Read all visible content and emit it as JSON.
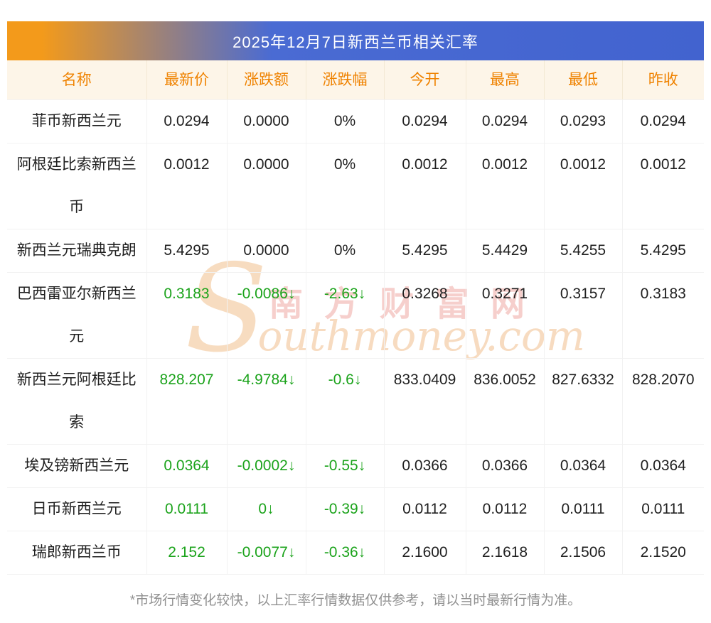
{
  "page": {
    "title": "2025年12月7日新西兰币相关汇率",
    "footnote": "*市场行情变化较快，以上汇率行情数据仅供参考，请以当时最新行情为准。"
  },
  "watermark": {
    "initial": "S",
    "brand_en": "outhmoney.com",
    "brand_cn": "南方财富网"
  },
  "colors": {
    "title_gradient_start": "#f39a1b",
    "title_gradient_end": "#4263cf",
    "header_text": "#ef8200",
    "header_bg": "#fdf5e8",
    "down_green": "#1ba31b",
    "text_dark": "#1f1f1f",
    "border": "#f2f2f2",
    "footnote_text": "#919191",
    "watermark_tan": "#f0c396",
    "watermark_pink": "#e8827a"
  },
  "chart_data": {
    "type": "table",
    "title": "2025年12月7日新西兰币相关汇率",
    "columns": [
      "名称",
      "最新价",
      "涨跌额",
      "涨跌幅",
      "今开",
      "最高",
      "最低",
      "昨收"
    ],
    "rows": [
      {
        "trend": "flat",
        "cells": [
          "菲币新西兰元",
          "0.0294",
          "0.0000",
          "0%",
          "0.0294",
          "0.0294",
          "0.0293",
          "0.0294"
        ]
      },
      {
        "trend": "flat",
        "cells": [
          "阿根廷比索新西兰币",
          "0.0012",
          "0.0000",
          "0%",
          "0.0012",
          "0.0012",
          "0.0012",
          "0.0012"
        ]
      },
      {
        "trend": "flat",
        "cells": [
          "新西兰元瑞典克朗",
          "5.4295",
          "0.0000",
          "0%",
          "5.4295",
          "5.4429",
          "5.4255",
          "5.4295"
        ]
      },
      {
        "trend": "down",
        "cells": [
          "巴西雷亚尔新西兰元",
          "0.3183",
          "-0.0086↓",
          "-2.63↓",
          "0.3268",
          "0.3271",
          "0.3157",
          "0.3183"
        ]
      },
      {
        "trend": "down",
        "cells": [
          "新西兰元阿根廷比索",
          "828.207",
          "-4.9784↓",
          "-0.6↓",
          "833.0409",
          "836.0052",
          "827.6332",
          "828.2070"
        ]
      },
      {
        "trend": "down",
        "cells": [
          "埃及镑新西兰元",
          "0.0364",
          "-0.0002↓",
          "-0.55↓",
          "0.0366",
          "0.0366",
          "0.0364",
          "0.0364"
        ]
      },
      {
        "trend": "down",
        "cells": [
          "日币新西兰元",
          "0.0111",
          "0↓",
          "-0.39↓",
          "0.0112",
          "0.0112",
          "0.0111",
          "0.0111"
        ]
      },
      {
        "trend": "down",
        "cells": [
          "瑞郎新西兰币",
          "2.152",
          "-0.0077↓",
          "-0.36↓",
          "2.1600",
          "2.1618",
          "2.1506",
          "2.1520"
        ]
      }
    ]
  }
}
